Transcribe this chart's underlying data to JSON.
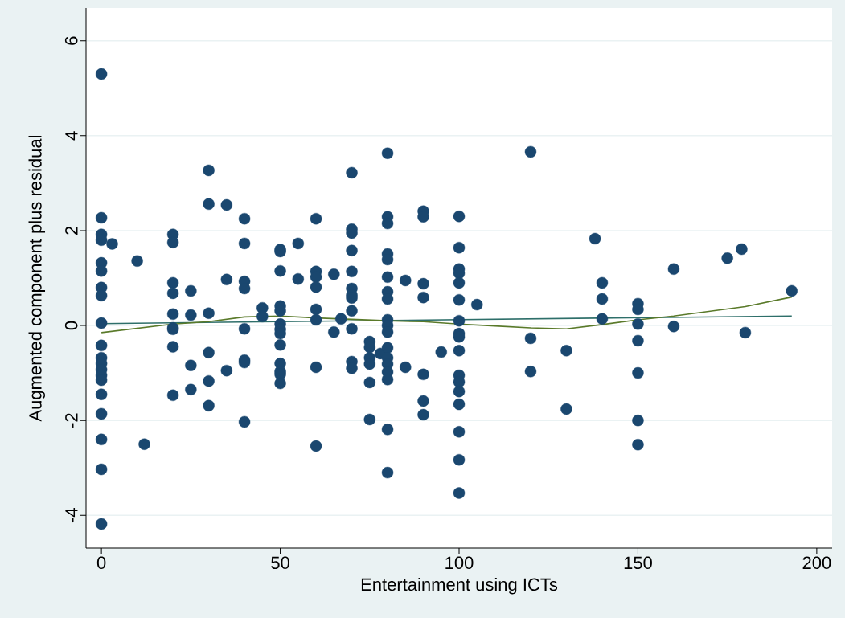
{
  "chart_data": {
    "type": "scatter",
    "xlabel": "Entertainment using ICTs",
    "ylabel": "Augmented component plus residual",
    "xlim": [
      -4.3,
      204.3
    ],
    "ylim": [
      -4.69,
      6.69
    ],
    "xticks": [
      0,
      50,
      100,
      150,
      200
    ],
    "yticks": [
      -4,
      -2,
      0,
      2,
      4,
      6
    ],
    "grid": "y",
    "series": [
      {
        "type": "scatter",
        "marker": "circle",
        "color": "#1a476f",
        "x": [
          0,
          0,
          0,
          0,
          0,
          0,
          0,
          0,
          0,
          0,
          0,
          0,
          0,
          0,
          0,
          0,
          0,
          0,
          0,
          0,
          3,
          10,
          12,
          20,
          20,
          20,
          20,
          20,
          20,
          20,
          20,
          20,
          25,
          25,
          25,
          25,
          30,
          30,
          30,
          30,
          30,
          30,
          35,
          35,
          35,
          40,
          40,
          40,
          40,
          40,
          40,
          40,
          40,
          45,
          45,
          50,
          50,
          50,
          50,
          50,
          50,
          50,
          50,
          50,
          50,
          50,
          50,
          50,
          55,
          55,
          60,
          60,
          60,
          60,
          60,
          60,
          60,
          60,
          65,
          65,
          67,
          70,
          70,
          70,
          70,
          70,
          70,
          70,
          70,
          70,
          70,
          70,
          70,
          75,
          75,
          75,
          75,
          75,
          75,
          78,
          80,
          80,
          80,
          80,
          80,
          80,
          80,
          80,
          80,
          80,
          80,
          80,
          80,
          80,
          80,
          80,
          80,
          80,
          85,
          85,
          90,
          90,
          90,
          90,
          90,
          90,
          90,
          95,
          100,
          100,
          100,
          100,
          100,
          100,
          100,
          100,
          100,
          100,
          100,
          100,
          100,
          100,
          100,
          100,
          100,
          105,
          120,
          120,
          120,
          130,
          130,
          138,
          140,
          140,
          140,
          150,
          150,
          150,
          150,
          150,
          150,
          150,
          160,
          160,
          175,
          179,
          180,
          193
        ],
        "values": [
          5.3,
          2.27,
          1.92,
          1.8,
          1.32,
          1.15,
          0.8,
          0.63,
          0.05,
          -0.42,
          -0.68,
          -0.8,
          -0.93,
          -1.05,
          -1.15,
          -1.45,
          -1.86,
          -2.4,
          -3.03,
          -4.18,
          1.72,
          1.36,
          -2.5,
          1.92,
          1.75,
          0.9,
          0.68,
          0.24,
          -0.05,
          -0.08,
          -0.45,
          -1.47,
          0.73,
          0.22,
          -0.84,
          -1.35,
          3.27,
          2.56,
          0.26,
          -0.57,
          -1.17,
          -1.69,
          2.54,
          0.97,
          -0.95,
          2.25,
          1.73,
          0.93,
          0.78,
          -0.07,
          -0.73,
          -0.78,
          -2.03,
          0.37,
          0.19,
          1.6,
          1.56,
          1.15,
          0.41,
          0.31,
          0.03,
          -0.08,
          -0.17,
          -0.41,
          -0.8,
          -0.97,
          -1.03,
          -1.22,
          1.73,
          0.98,
          2.25,
          1.14,
          1.02,
          0.81,
          0.34,
          0.12,
          -0.88,
          -2.54,
          1.08,
          -0.14,
          0.14,
          3.22,
          2.03,
          1.95,
          1.58,
          1.14,
          0.78,
          0.64,
          0.58,
          0.31,
          -0.07,
          -0.76,
          -0.9,
          -0.34,
          -0.46,
          -0.68,
          -0.81,
          -1.2,
          -1.98,
          -0.59,
          3.63,
          2.29,
          2.15,
          1.51,
          1.39,
          1.02,
          0.71,
          0.56,
          0.12,
          0,
          -0.14,
          -0.47,
          -0.68,
          -0.81,
          -0.98,
          -1.14,
          -2.19,
          -3.1,
          0.95,
          -0.88,
          2.41,
          2.29,
          0.88,
          0.59,
          -1.03,
          -1.59,
          -1.88,
          -0.56,
          2.3,
          1.64,
          1.19,
          1.1,
          0.9,
          0.54,
          0.1,
          -0.17,
          -0.24,
          -0.53,
          -1.05,
          -1.19,
          -1.39,
          -1.66,
          -2.24,
          -2.83,
          -3.53,
          0.44,
          3.66,
          -0.27,
          -0.97,
          -0.53,
          -1.76,
          1.83,
          0.9,
          0.56,
          0.14,
          0.46,
          0.34,
          0.03,
          -0.32,
          -1.0,
          -2.0,
          -2.51,
          1.19,
          -0.02,
          1.42,
          1.61,
          -0.15,
          0.73
        ]
      },
      {
        "type": "line",
        "marker": "none",
        "color": "#2e6f6a",
        "x": [
          0,
          193
        ],
        "values": [
          0.04,
          0.2
        ]
      },
      {
        "type": "line",
        "marker": "none",
        "color": "#5a7a2a",
        "x": [
          0,
          20,
          30,
          40,
          50,
          60,
          70,
          80,
          90,
          100,
          110,
          120,
          130,
          140,
          150,
          160,
          170,
          180,
          193
        ],
        "values": [
          -0.15,
          0.03,
          0.08,
          0.18,
          0.2,
          0.16,
          0.13,
          0.1,
          0.08,
          0.03,
          -0.01,
          -0.05,
          -0.07,
          0.02,
          0.12,
          0.2,
          0.3,
          0.4,
          0.6
        ]
      }
    ]
  }
}
